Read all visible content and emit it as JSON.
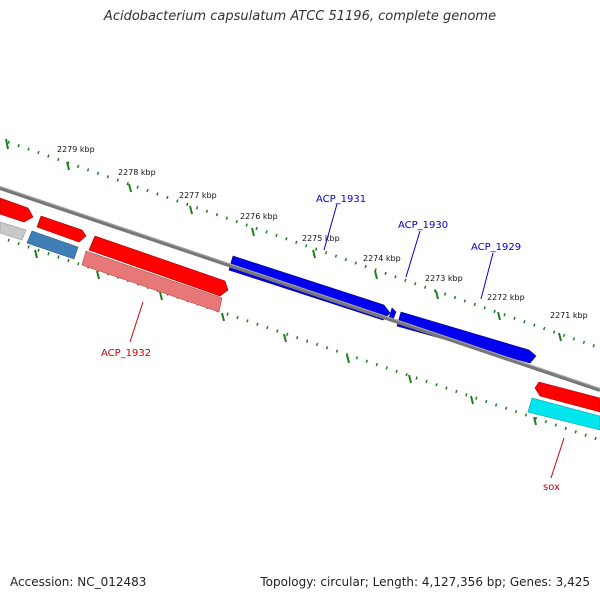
{
  "title": "Acidobacterium capsulatum ATCC 51196, complete genome",
  "footer": {
    "accession": "Accession: NC_012483",
    "topology": "Topology: circular; Length: 4,127,356 bp; Genes: 3,425"
  },
  "scale_labels": [
    "2279 kbp",
    "2278 kbp",
    "2277 kbp",
    "2276 kbp",
    "2275 kbp",
    "2274 kbp",
    "2273 kbp",
    "2272 kbp",
    "2271 kbp"
  ],
  "gene_labels": {
    "acp_1931": "ACP_1931",
    "acp_1930": "ACP_1930",
    "acp_1929": "ACP_1929",
    "acp_1932": "ACP_1932",
    "sox": "sox"
  },
  "colors": {
    "backbone": "#777777",
    "scale": "#1f7f1f",
    "forward_feature": "#ff0000",
    "reverse_feature": "#e87878",
    "blue_feature": "#0000ee",
    "steel_feature": "#3f7fb5",
    "grey_feature": "#c8c8c8",
    "cyan_feature": "#00e5ee",
    "label_blue": "#0000cc",
    "label_red": "#cc0000"
  }
}
